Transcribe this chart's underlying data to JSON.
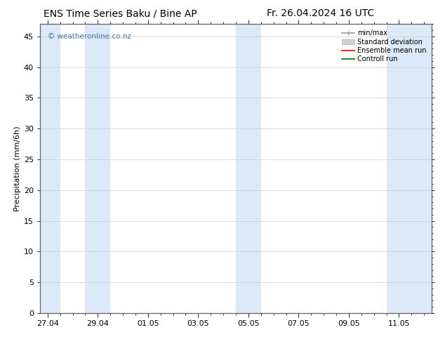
{
  "title_left": "ENS Time Series Baku / Bine AP",
  "title_right": "Fr. 26.04.2024 16 UTC",
  "ylabel": "Precipitation (mm/6h)",
  "watermark": "© weatheronline.co.nz",
  "x_tick_labels": [
    "27.04",
    "29.04",
    "01.05",
    "03.05",
    "05.05",
    "07.05",
    "09.05",
    "11.05"
  ],
  "x_tick_positions": [
    0,
    2,
    4,
    6,
    8,
    10,
    12,
    14
  ],
  "ylim": [
    0,
    47
  ],
  "yticks": [
    0,
    5,
    10,
    15,
    20,
    25,
    30,
    35,
    40,
    45
  ],
  "xlim": [
    -0.3,
    15.3
  ],
  "shaded_bands": [
    {
      "x_start": -0.3,
      "x_end": 0.5
    },
    {
      "x_start": 1.5,
      "x_end": 2.5
    },
    {
      "x_start": 7.5,
      "x_end": 8.5
    },
    {
      "x_start": 13.5,
      "x_end": 15.3
    }
  ],
  "band_color": "#dce9f8",
  "background_color": "#ffffff",
  "grid_color": "#cccccc",
  "legend_items": [
    {
      "label": "min/max",
      "color": "#aaaaaa",
      "type": "errorbar"
    },
    {
      "label": "Standard deviation",
      "color": "#cccccc",
      "type": "band"
    },
    {
      "label": "Ensemble mean run",
      "color": "#ff0000",
      "type": "line"
    },
    {
      "label": "Controll run",
      "color": "#008000",
      "type": "line"
    }
  ],
  "title_fontsize": 10,
  "label_fontsize": 8,
  "tick_fontsize": 8,
  "watermark_color": "#4477aa",
  "axis_border_color": "#666666"
}
